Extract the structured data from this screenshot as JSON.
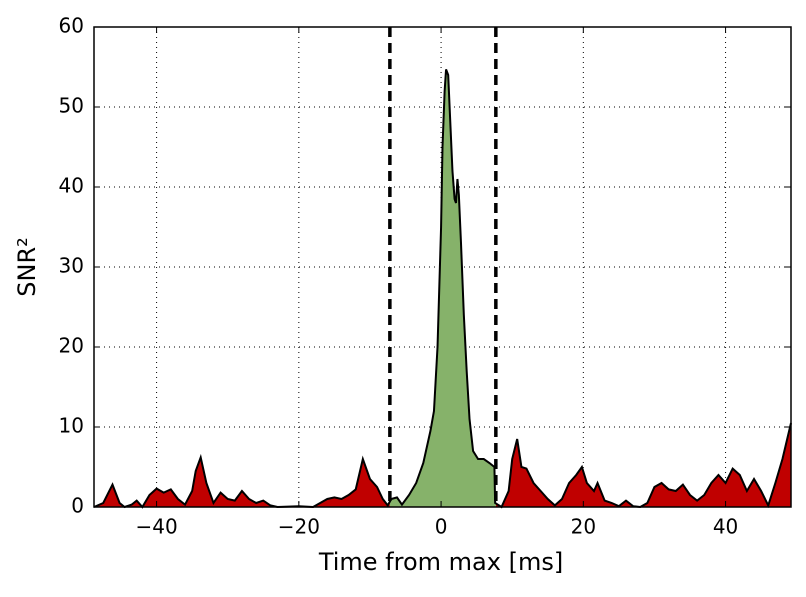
{
  "chart_data": {
    "type": "area",
    "xlabel": "Time from max [ms]",
    "ylabel": "SNR²",
    "x": [
      -48.8,
      -47.5,
      -46.2,
      -45.2,
      -44.5,
      -43.5,
      -42.8,
      -42,
      -41,
      -40,
      -39,
      -38,
      -37,
      -36,
      -35,
      -34.5,
      -33.8,
      -33,
      -32,
      -31,
      -30,
      -29,
      -28,
      -27,
      -26,
      -25,
      -24,
      -23,
      -20,
      -18,
      -17,
      -16,
      -15,
      -14,
      -13,
      -12,
      -11,
      -10,
      -9,
      -8.2,
      -7.5,
      -7,
      -6.2,
      -5.5,
      -4.5,
      -3.5,
      -2.5,
      -1.5,
      -1,
      -0.5,
      0,
      0.2,
      0.5,
      0.7,
      1,
      1.3,
      1.6,
      1.9,
      2.1,
      2.3,
      2.5,
      2.8,
      3.2,
      3.6,
      4,
      4.5,
      5.2,
      6,
      6.8,
      7.5,
      7.6,
      8.5,
      9.5,
      10,
      10.7,
      11.3,
      12,
      13,
      14,
      15,
      16,
      17,
      18,
      19,
      19.8,
      20.5,
      21.5,
      22,
      23,
      24,
      25,
      26,
      27,
      28,
      29,
      30,
      31,
      32,
      33,
      34,
      35,
      36,
      37,
      38,
      39,
      40,
      41,
      42,
      43,
      44,
      45,
      46,
      47,
      48,
      49.2
    ],
    "values": [
      0,
      0.5,
      2.8,
      0.5,
      0,
      0.3,
      0.8,
      0,
      1.5,
      2.3,
      1.8,
      2.2,
      1,
      0.3,
      2,
      4.5,
      6.2,
      3,
      0.5,
      1.8,
      1,
      0.8,
      2,
      1,
      0.5,
      0.8,
      0.2,
      0,
      0.1,
      0,
      0.5,
      1,
      1.2,
      1,
      1.5,
      2.2,
      6,
      3.5,
      2.5,
      1,
      0.2,
      1,
      1.2,
      0.3,
      1.5,
      3,
      5.5,
      9.5,
      12,
      20,
      35,
      45,
      52,
      54.7,
      54,
      48,
      42,
      38.5,
      38,
      41,
      39,
      33,
      24,
      17,
      11,
      7,
      6,
      6,
      5.5,
      5,
      0.5,
      0,
      2,
      6,
      8.5,
      5,
      4.8,
      3,
      2,
      1,
      0.2,
      1,
      3,
      4,
      5,
      3,
      2,
      3,
      0.8,
      0.5,
      0.1,
      0.8,
      0.1,
      0,
      0.5,
      2.5,
      3,
      2.2,
      2,
      2.8,
      1.5,
      0.8,
      1.5,
      3,
      4,
      3,
      4.8,
      4,
      2,
      3.5,
      2,
      0.2,
      3,
      6,
      10.5
    ],
    "color": "#000000",
    "fill_inside": "#86b26a",
    "fill_outside": "#c00000",
    "window": [
      -7.2,
      7.7
    ],
    "xlim": [
      -48.8,
      49.2
    ],
    "ylim": [
      0,
      60
    ],
    "xticks": [
      {
        "value": -40,
        "label": "−40"
      },
      {
        "value": -20,
        "label": "−20"
      },
      0,
      20,
      40
    ],
    "yticks": [
      0,
      10,
      20,
      30,
      40,
      50,
      60
    ],
    "grid": true
  }
}
